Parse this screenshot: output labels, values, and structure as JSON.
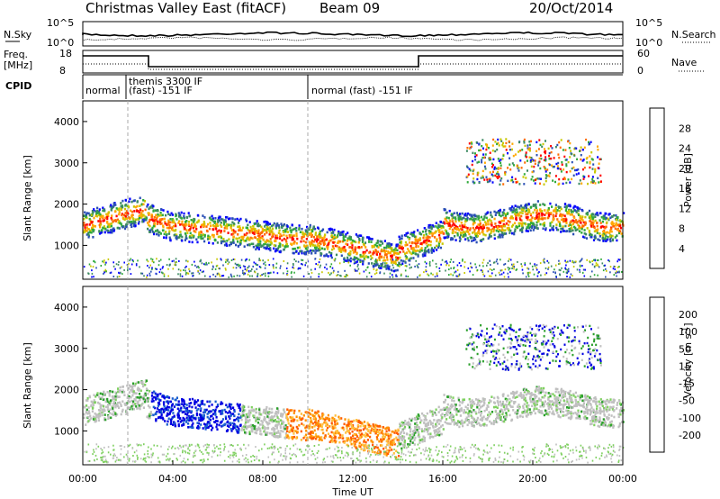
{
  "header": {
    "station": "Christmas Valley East (fitACF)",
    "beam": "Beam 09",
    "date": "20/Oct/2014"
  },
  "noise_panel": {
    "left_label": "N.Sky",
    "right_label": "N.Search",
    "left_ticks": [
      "10^5",
      "10^0"
    ],
    "right_ticks": [
      "10^5",
      "10^0"
    ]
  },
  "freq_panel": {
    "left_label_line1": "Freq.",
    "left_label_line2": "[MHz]",
    "right_label": "Nave",
    "left_ticks": [
      "18",
      "8"
    ],
    "right_ticks": [
      "60",
      "0"
    ]
  },
  "cpid_panel": {
    "label": "CPID",
    "segments": [
      {
        "line1": "normal",
        "line2": "",
        "start_hour": 0.0
      },
      {
        "line1": "themis 3300 IF",
        "line2": "(fast) -151 IF",
        "start_hour": 2.0
      },
      {
        "line1": "normal (fast) -151 IF",
        "line2": "",
        "start_hour": 10.0
      }
    ]
  },
  "colors": {
    "power_scale": [
      "#0000ff",
      "#2a4fb5",
      "#3d8a60",
      "#2faa3a",
      "#c8c800",
      "#ffa800",
      "#ff6a00",
      "#ff0000"
    ],
    "velocity_scale": [
      "#0000e0",
      "#1a5fcf",
      "#2a9f2a",
      "#7fd060",
      "#c0c0c0",
      "#ffc040",
      "#ff9000",
      "#ff5a00",
      "#ff0000"
    ]
  },
  "chart_data": [
    {
      "type": "heatmap",
      "name": "Power",
      "ylabel": "Slant Range [km]",
      "y_ticks": [
        1000,
        2000,
        3000,
        4000
      ],
      "ylim": [
        180,
        4500
      ],
      "xlim_hours": [
        0,
        24
      ],
      "colorbar_label": "Power [dB]",
      "colorbar_ticks": [
        "4",
        "8",
        "12",
        "16",
        "20",
        "24",
        "28"
      ],
      "colorbar_range": [
        0,
        30
      ]
    },
    {
      "type": "heatmap",
      "name": "Velocity",
      "ylabel": "Slant Range [km]",
      "y_ticks": [
        1000,
        2000,
        3000,
        4000
      ],
      "ylim": [
        180,
        4500
      ],
      "xlim_hours": [
        0,
        24
      ],
      "xlabel": "Time UT",
      "x_ticks": [
        "00:00",
        "04:00",
        "08:00",
        "12:00",
        "16:00",
        "20:00",
        "00:00"
      ],
      "colorbar_label": "Velocity [m s^-1]",
      "colorbar_ticks": [
        "200",
        "100",
        "50",
        "15",
        "-15",
        "-50",
        "-100",
        "-200"
      ]
    }
  ]
}
